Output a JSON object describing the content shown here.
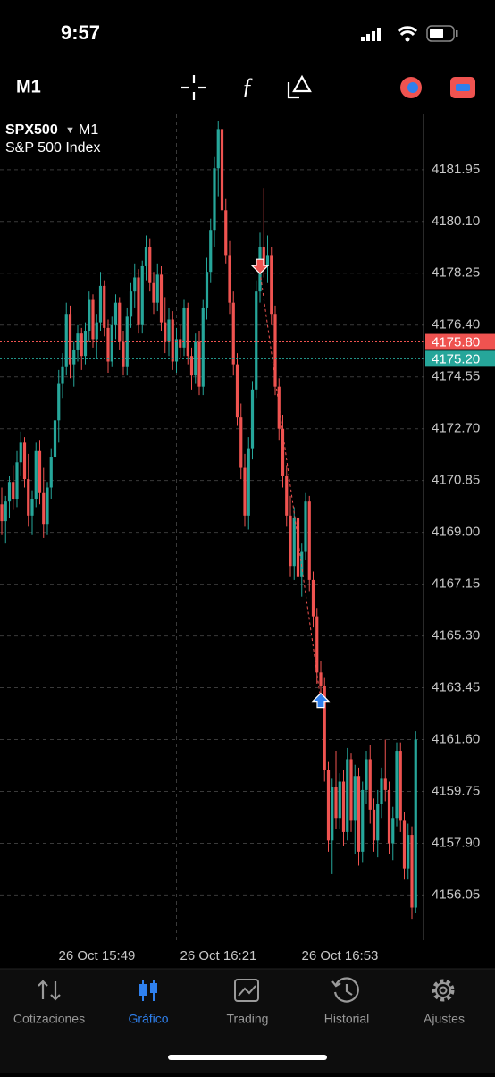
{
  "status_bar": {
    "time": "9:57"
  },
  "toolbar": {
    "timeframe": "M1"
  },
  "tabs": [
    "Cotizaciones",
    "Gráfico",
    "Trading",
    "Historial",
    "Ajustes"
  ],
  "active_tab": 1,
  "chart_data": {
    "type": "candlestick",
    "symbol": "SPX500",
    "timeframe": "M1",
    "subtitle": "S&P 500 Index",
    "up_color": "#26a69a",
    "down_color": "#ef5350",
    "grid": true,
    "ylim": [
      4154.5,
      4183.7
    ],
    "yticks": [
      4181.95,
      {
        "value": 4180.1,
        "label": "4180.10"
      },
      4178.25,
      {
        "value": 4176.4,
        "label": "4176.40"
      },
      4174.55,
      {
        "value": 4172.7,
        "label": "4172.70"
      },
      4170.85,
      {
        "value": 4169,
        "label": "4169.00"
      },
      4167.15,
      {
        "value": 4165.3,
        "label": "4165.30"
      },
      4163.45,
      {
        "value": 4161.6,
        "label": "4161.60"
      },
      4159.75,
      {
        "value": 4157.9,
        "label": "4157.90"
      },
      4156.05
    ],
    "xticks": [
      "26 Oct 15:49",
      "26 Oct 16:21",
      "26 Oct 16:53"
    ],
    "bid": {
      "value": 4175.8,
      "label": "4175.80",
      "color": "#ef5350"
    },
    "ask": {
      "value": 4175.2,
      "label": "4175.20",
      "color": "#26a69a"
    },
    "trades": [
      {
        "x": "26 Oct 16:43",
        "value": 4178.3,
        "direction": "down",
        "color": "#ef5350"
      },
      {
        "x": "26 Oct 16:59",
        "value": 4163.0,
        "direction": "up",
        "color": "#2f80ed"
      }
    ],
    "x": [
      "26 Oct 15:35",
      "26 Oct 15:36",
      "26 Oct 15:37",
      "26 Oct 15:38",
      "26 Oct 15:39",
      "26 Oct 15:40",
      "26 Oct 15:41",
      "26 Oct 15:42",
      "26 Oct 15:43",
      "26 Oct 15:44",
      "26 Oct 15:45",
      "26 Oct 15:46",
      "26 Oct 15:47",
      "26 Oct 15:48",
      "26 Oct 15:49",
      "26 Oct 15:50",
      "26 Oct 15:51",
      "26 Oct 15:52",
      "26 Oct 15:53",
      "26 Oct 15:54",
      "26 Oct 15:55",
      "26 Oct 15:56",
      "26 Oct 15:57",
      "26 Oct 15:58",
      "26 Oct 15:59",
      "26 Oct 16:00",
      "26 Oct 16:01",
      "26 Oct 16:02",
      "26 Oct 16:03",
      "26 Oct 16:04",
      "26 Oct 16:05",
      "26 Oct 16:06",
      "26 Oct 16:07",
      "26 Oct 16:08",
      "26 Oct 16:09",
      "26 Oct 16:10",
      "26 Oct 16:11",
      "26 Oct 16:12",
      "26 Oct 16:13",
      "26 Oct 16:14",
      "26 Oct 16:15",
      "26 Oct 16:16",
      "26 Oct 16:17",
      "26 Oct 16:18",
      "26 Oct 16:19",
      "26 Oct 16:20",
      "26 Oct 16:21",
      "26 Oct 16:22",
      "26 Oct 16:23",
      "26 Oct 16:24",
      "26 Oct 16:25",
      "26 Oct 16:26",
      "26 Oct 16:27",
      "26 Oct 16:28",
      "26 Oct 16:29",
      "26 Oct 16:30",
      "26 Oct 16:31",
      "26 Oct 16:32",
      "26 Oct 16:33",
      "26 Oct 16:34",
      "26 Oct 16:35",
      "26 Oct 16:36",
      "26 Oct 16:37",
      "26 Oct 16:38",
      "26 Oct 16:39",
      "26 Oct 16:40",
      "26 Oct 16:41",
      "26 Oct 16:42",
      "26 Oct 16:43",
      "26 Oct 16:44",
      "26 Oct 16:45",
      "26 Oct 16:46",
      "26 Oct 16:47",
      "26 Oct 16:48",
      "26 Oct 16:49",
      "26 Oct 16:50",
      "26 Oct 16:51",
      "26 Oct 16:52",
      "26 Oct 16:53",
      "26 Oct 16:54",
      "26 Oct 16:55",
      "26 Oct 16:56",
      "26 Oct 16:57",
      "26 Oct 16:58",
      "26 Oct 16:59",
      "26 Oct 17:00",
      "26 Oct 17:01",
      "26 Oct 17:02",
      "26 Oct 17:03",
      "26 Oct 17:04",
      "26 Oct 17:05",
      "26 Oct 17:06",
      "26 Oct 17:07",
      "26 Oct 17:08",
      "26 Oct 17:09",
      "26 Oct 17:10",
      "26 Oct 17:11",
      "26 Oct 17:12",
      "26 Oct 17:13",
      "26 Oct 17:14",
      "26 Oct 17:15",
      "26 Oct 17:16",
      "26 Oct 17:17",
      "26 Oct 17:18",
      "26 Oct 17:19",
      "26 Oct 17:20",
      "26 Oct 17:21",
      "26 Oct 17:22",
      "26 Oct 17:23",
      "26 Oct 17:24"
    ],
    "candles": [
      [
        4170.0,
        4170.6,
        4168.9,
        4169.4
      ],
      [
        4169.4,
        4170.3,
        4168.6,
        4170.1
      ],
      [
        4170.1,
        4171.0,
        4169.5,
        4170.8
      ],
      [
        4170.8,
        4171.4,
        4169.8,
        4170.2
      ],
      [
        4170.2,
        4171.9,
        4169.9,
        4171.5
      ],
      [
        4171.5,
        4172.6,
        4171.0,
        4172.2
      ],
      [
        4172.2,
        4172.4,
        4170.6,
        4170.9
      ],
      [
        4170.9,
        4171.8,
        4169.2,
        4169.6
      ],
      [
        4169.6,
        4170.5,
        4168.9,
        4170.2
      ],
      [
        4170.2,
        4172.2,
        4169.9,
        4171.9
      ],
      [
        4171.9,
        4172.3,
        4170.0,
        4170.4
      ],
      [
        4170.4,
        4171.3,
        4168.8,
        4169.3
      ],
      [
        4169.3,
        4170.8,
        4168.9,
        4170.6
      ],
      [
        4170.6,
        4172.0,
        4170.2,
        4171.7
      ],
      [
        4171.7,
        4173.5,
        4171.3,
        4173.0
      ],
      [
        4173.0,
        4174.8,
        4172.2,
        4174.3
      ],
      [
        4174.3,
        4175.4,
        4173.8,
        4174.9
      ],
      [
        4174.9,
        4177.2,
        4174.6,
        4176.8
      ],
      [
        4176.8,
        4177.1,
        4174.5,
        4175.0
      ],
      [
        4175.0,
        4175.8,
        4174.2,
        4175.5
      ],
      [
        4175.5,
        4176.4,
        4175.1,
        4176.1
      ],
      [
        4176.1,
        4176.3,
        4174.8,
        4175.3
      ],
      [
        4175.3,
        4176.5,
        4175.0,
        4176.2
      ],
      [
        4176.2,
        4177.6,
        4175.8,
        4177.3
      ],
      [
        4177.3,
        4177.5,
        4175.6,
        4175.9
      ],
      [
        4175.9,
        4176.8,
        4175.2,
        4176.5
      ],
      [
        4176.5,
        4178.3,
        4176.2,
        4177.8
      ],
      [
        4177.8,
        4178.0,
        4176.0,
        4176.3
      ],
      [
        4176.3,
        4176.6,
        4174.7,
        4175.1
      ],
      [
        4175.1,
        4176.7,
        4174.9,
        4176.4
      ],
      [
        4176.4,
        4177.5,
        4175.9,
        4177.2
      ],
      [
        4177.2,
        4177.4,
        4175.5,
        4175.8
      ],
      [
        4175.8,
        4176.2,
        4174.6,
        4174.9
      ],
      [
        4174.9,
        4177.0,
        4174.6,
        4176.7
      ],
      [
        4176.7,
        4177.9,
        4176.3,
        4177.6
      ],
      [
        4177.6,
        4178.6,
        4177.0,
        4178.1
      ],
      [
        4178.1,
        4178.4,
        4176.1,
        4176.4
      ],
      [
        4176.4,
        4178.7,
        4176.1,
        4178.5
      ],
      [
        4178.5,
        4179.6,
        4178.0,
        4179.2
      ],
      [
        4179.2,
        4179.5,
        4177.6,
        4177.9
      ],
      [
        4177.9,
        4178.3,
        4176.8,
        4177.2
      ],
      [
        4177.2,
        4178.6,
        4176.9,
        4178.2
      ],
      [
        4178.2,
        4178.5,
        4176.2,
        4176.5
      ],
      [
        4176.5,
        4177.4,
        4175.4,
        4175.8
      ],
      [
        4175.8,
        4177.0,
        4175.3,
        4176.6
      ],
      [
        4176.6,
        4176.9,
        4174.8,
        4175.1
      ],
      [
        4175.1,
        4176.3,
        4174.7,
        4175.9
      ],
      [
        4175.9,
        4176.4,
        4175.2,
        4175.6
      ],
      [
        4175.6,
        4177.3,
        4175.3,
        4177.0
      ],
      [
        4177.0,
        4177.2,
        4175.0,
        4175.3
      ],
      [
        4175.3,
        4175.6,
        4174.1,
        4174.6
      ],
      [
        4174.6,
        4176.1,
        4174.3,
        4175.8
      ],
      [
        4175.8,
        4176.2,
        4173.9,
        4174.2
      ],
      [
        4174.2,
        4177.3,
        4173.9,
        4177.0
      ],
      [
        4177.0,
        4178.8,
        4176.6,
        4178.3
      ],
      [
        4178.3,
        4180.2,
        4177.9,
        4179.8
      ],
      [
        4179.8,
        4182.4,
        4179.2,
        4182.0
      ],
      [
        4182.0,
        4183.7,
        4181.0,
        4183.4
      ],
      [
        4183.4,
        4183.6,
        4180.2,
        4180.5
      ],
      [
        4180.5,
        4180.9,
        4178.6,
        4178.9
      ],
      [
        4178.9,
        4179.4,
        4176.8,
        4177.2
      ],
      [
        4177.2,
        4177.6,
        4174.6,
        4175.0
      ],
      [
        4175.0,
        4175.4,
        4172.8,
        4173.1
      ],
      [
        4173.1,
        4173.6,
        4170.9,
        4171.3
      ],
      [
        4171.3,
        4171.8,
        4169.2,
        4169.6
      ],
      [
        4169.6,
        4172.4,
        4169.1,
        4172.0
      ],
      [
        4172.0,
        4174.4,
        4171.6,
        4174.1
      ],
      [
        4174.1,
        4178.0,
        4173.8,
        4177.6
      ],
      [
        4177.6,
        4179.7,
        4177.2,
        4179.2
      ],
      [
        4179.2,
        4181.3,
        4178.1,
        4178.5
      ],
      [
        4178.5,
        4179.6,
        4177.9,
        4178.9
      ],
      [
        4178.9,
        4179.2,
        4176.4,
        4176.8
      ],
      [
        4176.8,
        4177.1,
        4173.9,
        4174.2
      ],
      [
        4174.2,
        4174.5,
        4172.3,
        4172.7
      ],
      [
        4172.7,
        4173.2,
        4170.6,
        4171.0
      ],
      [
        4171.0,
        4171.4,
        4169.2,
        4169.6
      ],
      [
        4169.6,
        4170.3,
        4167.4,
        4167.8
      ],
      [
        4167.8,
        4169.9,
        4167.3,
        4169.5
      ],
      [
        4169.5,
        4169.8,
        4167.0,
        4167.4
      ],
      [
        4167.4,
        4168.6,
        4166.7,
        4168.3
      ],
      [
        4168.3,
        4170.4,
        4168.0,
        4170.1
      ],
      [
        4170.1,
        4170.3,
        4166.9,
        4167.3
      ],
      [
        4167.3,
        4167.6,
        4165.6,
        4166.0
      ],
      [
        4166.0,
        4166.3,
        4163.6,
        4164.0
      ],
      [
        4164.0,
        4164.4,
        4162.9,
        4163.5
      ],
      [
        4163.5,
        4163.8,
        4160.1,
        4160.5
      ],
      [
        4160.5,
        4160.8,
        4157.6,
        4158.0
      ],
      [
        4158.0,
        4160.2,
        4156.8,
        4159.9
      ],
      [
        4159.9,
        4161.2,
        4158.4,
        4158.8
      ],
      [
        4158.8,
        4160.4,
        4158.4,
        4160.1
      ],
      [
        4160.1,
        4160.5,
        4157.8,
        4158.3
      ],
      [
        4158.3,
        4161.3,
        4158.0,
        4160.9
      ],
      [
        4160.9,
        4161.1,
        4158.3,
        4158.7
      ],
      [
        4158.7,
        4160.7,
        4157.5,
        4160.3
      ],
      [
        4160.3,
        4160.6,
        4157.1,
        4157.6
      ],
      [
        4157.6,
        4160.1,
        4157.2,
        4159.8
      ],
      [
        4159.8,
        4161.2,
        4159.3,
        4160.9
      ],
      [
        4160.9,
        4161.4,
        4158.6,
        4159.1
      ],
      [
        4159.1,
        4159.5,
        4157.6,
        4158.0
      ],
      [
        4158.0,
        4159.8,
        4157.4,
        4159.3
      ],
      [
        4159.3,
        4160.6,
        4158.8,
        4160.2
      ],
      [
        4160.2,
        4161.6,
        4159.4,
        4159.8
      ],
      [
        4159.8,
        4160.1,
        4157.5,
        4157.9
      ],
      [
        4157.9,
        4159.2,
        4157.3,
        4158.8
      ],
      [
        4158.8,
        4161.5,
        4158.5,
        4161.2
      ],
      [
        4161.2,
        4161.5,
        4158.3,
        4158.7
      ],
      [
        4158.7,
        4159.0,
        4156.6,
        4157.0
      ],
      [
        4157.0,
        4158.6,
        4156.6,
        4158.2
      ],
      [
        4158.2,
        4158.5,
        4155.2,
        4155.6
      ],
      [
        4155.6,
        4161.9,
        4155.4,
        4161.6
      ]
    ]
  }
}
